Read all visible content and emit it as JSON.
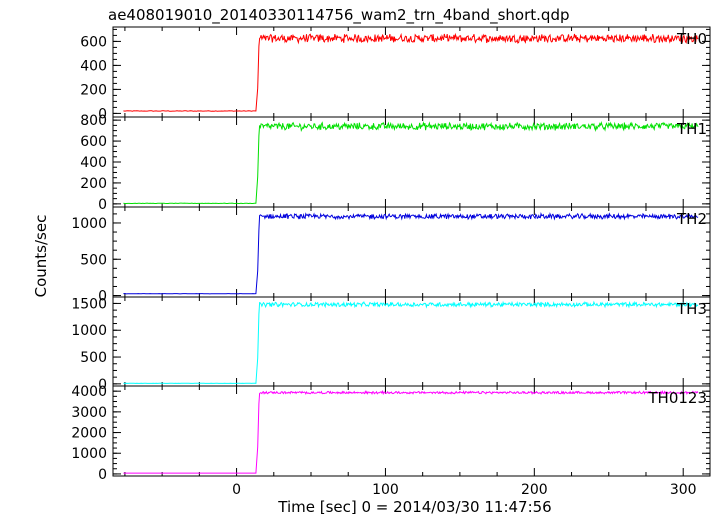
{
  "title": "ae408019010_20140330114756_wam2_trn_4band_short.qdp",
  "xlabel": "Time [sec] 0 = 2014/03/30 11:47:56",
  "ylabel": "Counts/sec",
  "chart_data": [
    {
      "type": "line",
      "name": "TH0",
      "color": "#ff0000",
      "xlim": [
        -83,
        318
      ],
      "ylim": [
        -30,
        720
      ],
      "y_ticks": [
        0,
        200,
        400,
        600
      ],
      "x_ticks": [
        0,
        100,
        200,
        300
      ],
      "pre_level": 20,
      "rise_points": [
        [
          13,
          20
        ],
        [
          14.2,
          210
        ],
        [
          15,
          560
        ]
      ],
      "post_level": 625,
      "noise": 30,
      "x_start": -76,
      "x_end": 310
    },
    {
      "type": "line",
      "name": "TH1",
      "color": "#00e000",
      "xlim": [
        -83,
        318
      ],
      "ylim": [
        -30,
        830
      ],
      "y_ticks": [
        0,
        200,
        400,
        600,
        800
      ],
      "x_ticks": [
        0,
        100,
        200,
        300
      ],
      "pre_level": 5,
      "rise_points": [
        [
          13,
          5
        ],
        [
          14.2,
          260
        ],
        [
          15,
          650
        ]
      ],
      "post_level": 740,
      "noise": 30,
      "x_start": -76,
      "x_end": 310
    },
    {
      "type": "line",
      "name": "TH2",
      "color": "#0000dd",
      "xlim": [
        -83,
        318
      ],
      "ylim": [
        -20,
        1220
      ],
      "y_ticks": [
        0,
        500,
        1000
      ],
      "x_ticks": [
        0,
        100,
        200,
        300
      ],
      "pre_level": 25,
      "rise_points": [
        [
          13,
          25
        ],
        [
          14.2,
          340
        ],
        [
          15,
          900
        ]
      ],
      "post_level": 1090,
      "noise": 30,
      "x_start": -76,
      "x_end": 310
    },
    {
      "type": "line",
      "name": "TH3",
      "color": "#00ffff",
      "xlim": [
        -83,
        318
      ],
      "ylim": [
        -40,
        1620
      ],
      "y_ticks": [
        0,
        500,
        1000,
        1500
      ],
      "x_ticks": [
        0,
        100,
        200,
        300
      ],
      "pre_level": 10,
      "rise_points": [
        [
          13,
          10
        ],
        [
          14.2,
          480
        ],
        [
          15,
          1300
        ]
      ],
      "post_level": 1480,
      "noise": 35,
      "x_start": -76,
      "x_end": 310
    },
    {
      "type": "line",
      "name": "TH0123",
      "color": "#ff00ff",
      "xlim": [
        -83,
        318
      ],
      "ylim": [
        -100,
        4250
      ],
      "y_ticks": [
        0,
        1000,
        2000,
        3000,
        4000
      ],
      "x_ticks": [
        0,
        100,
        200,
        300
      ],
      "pre_level": 40,
      "rise_points": [
        [
          13,
          40
        ],
        [
          14.2,
          1300
        ],
        [
          15,
          3400
        ]
      ],
      "post_level": 3930,
      "noise": 50,
      "x_start": -76,
      "x_end": 310
    }
  ]
}
